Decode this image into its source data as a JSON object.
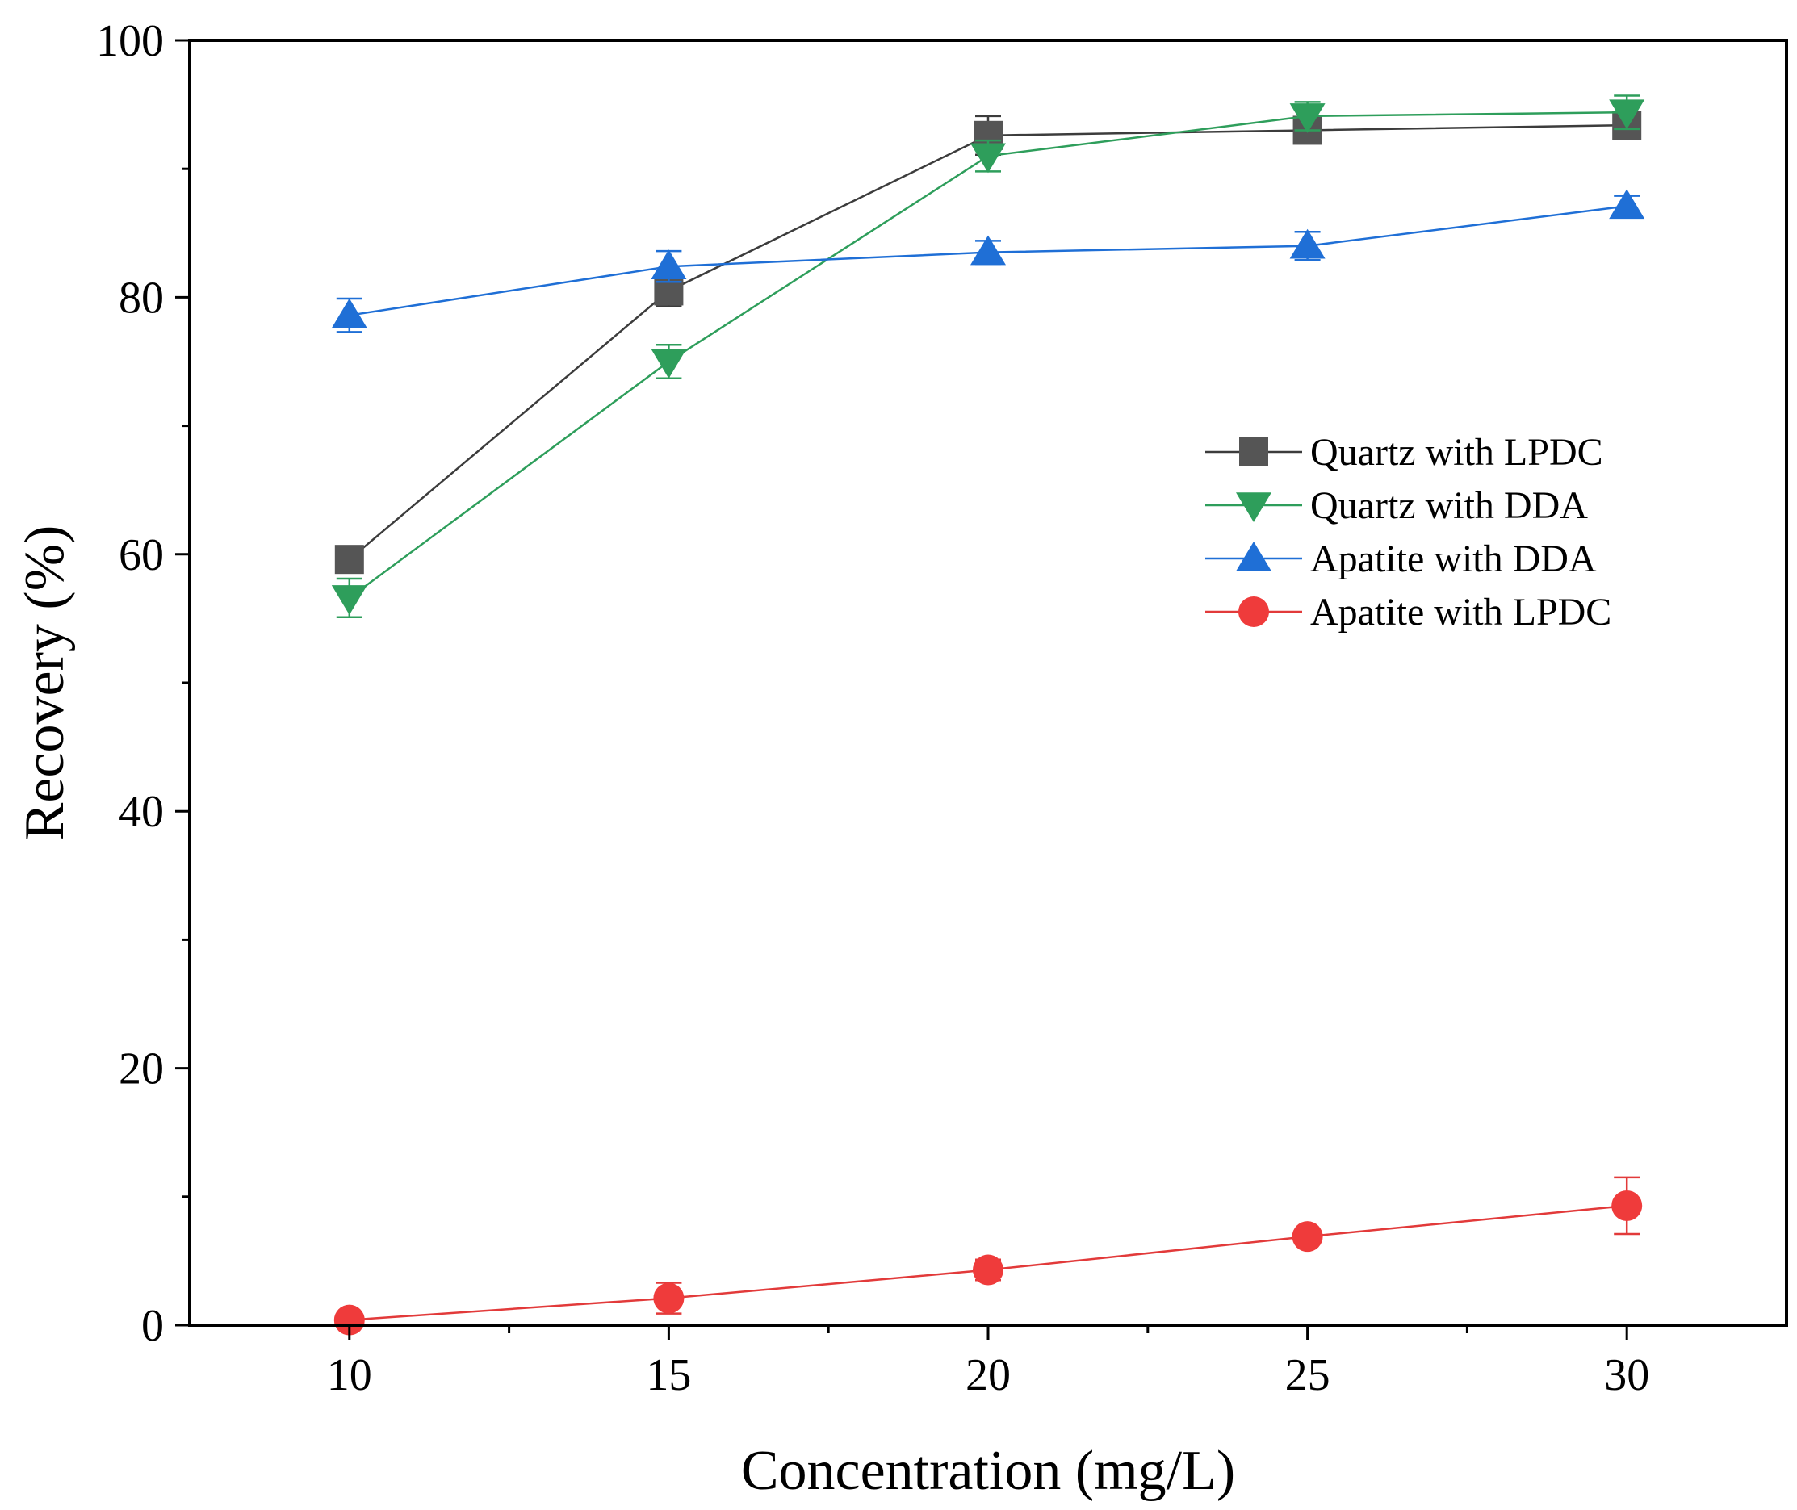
{
  "chart_data": {
    "type": "line",
    "title": "",
    "xlabel": "Concentration (mg/L)",
    "ylabel": "Recovery (%)",
    "xlim": [
      7.5,
      32.5
    ],
    "ylim": [
      0,
      100
    ],
    "x": [
      10,
      15,
      20,
      25,
      30
    ],
    "xticks": [
      10,
      15,
      20,
      25,
      30
    ],
    "yticks": [
      0,
      20,
      40,
      60,
      80,
      100
    ],
    "xtick_labels": [
      "10",
      "15",
      "20",
      "25",
      "30"
    ],
    "ytick_labels": [
      "0",
      "20",
      "40",
      "60",
      "80",
      "100"
    ],
    "grid": false,
    "legend_position": "center-right",
    "series": [
      {
        "name": "Quartz with LPDC",
        "marker": "square",
        "color": "#3c3c3c",
        "marker_color": "#555555",
        "values": [
          59.6,
          80.5,
          92.6,
          93.0,
          93.4
        ],
        "errors": [
          0.8,
          1.2,
          1.5,
          0.8,
          0.6
        ]
      },
      {
        "name": "Quartz with DDA",
        "marker": "triangle-down",
        "color": "#2e9e5b",
        "marker_color": "#2e9e5b",
        "values": [
          56.6,
          75.0,
          91.0,
          94.1,
          94.4
        ],
        "errors": [
          1.5,
          1.3,
          1.2,
          1.1,
          1.3
        ]
      },
      {
        "name": "Apatite with DDA",
        "marker": "triangle-up",
        "color": "#1f6fd6",
        "marker_color": "#1f6fd6",
        "values": [
          78.6,
          82.4,
          83.5,
          84.0,
          87.1
        ],
        "errors": [
          1.3,
          1.2,
          0.9,
          1.1,
          0.8
        ]
      },
      {
        "name": "Apatite with LPDC",
        "marker": "circle",
        "color": "#e23a3a",
        "marker_color": "#ef3b3b",
        "values": [
          0.4,
          2.1,
          4.3,
          6.9,
          9.3
        ],
        "errors": [
          0.2,
          1.2,
          0.8,
          0.5,
          2.2
        ]
      }
    ]
  }
}
